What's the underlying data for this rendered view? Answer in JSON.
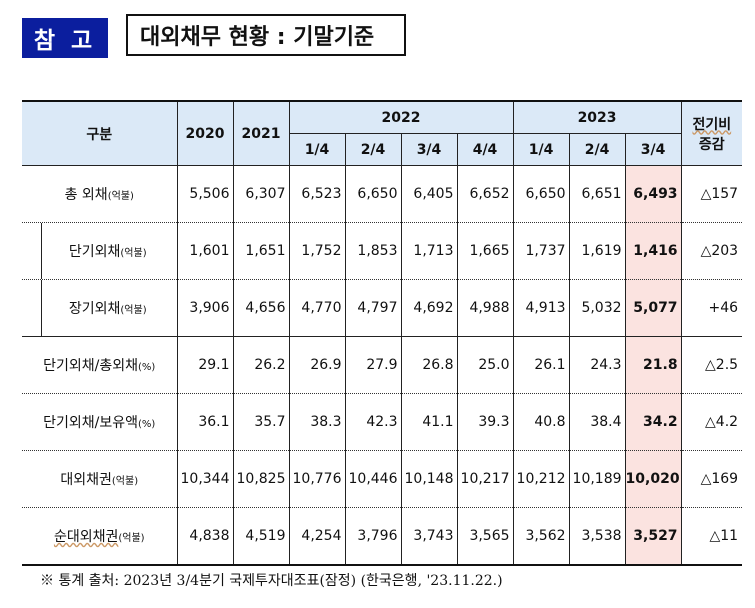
{
  "header": {
    "badge": "참 고",
    "title": "대외채무 현황 : 기말기준"
  },
  "table": {
    "col_label": "구분",
    "years": [
      "2020",
      "2021"
    ],
    "group_2022": "2022",
    "group_2023": "2023",
    "quarters_2022": [
      "1/4",
      "2/4",
      "3/4",
      "4/4"
    ],
    "quarters_2023": [
      "1/4",
      "2/4",
      "3/4"
    ],
    "change_header_line1": "전기비",
    "change_header_line2": "증감",
    "rows": [
      {
        "label": "총 외채",
        "unit": "(억불)",
        "values": [
          "5,506",
          "6,307",
          "6,523",
          "6,650",
          "6,405",
          "6,652",
          "6,650",
          "6,651",
          "6,493"
        ],
        "change": "△157"
      },
      {
        "label": "단기외채",
        "unit": "(억불)",
        "values": [
          "1,601",
          "1,651",
          "1,752",
          "1,853",
          "1,713",
          "1,665",
          "1,737",
          "1,619",
          "1,416"
        ],
        "change": "△203"
      },
      {
        "label": "장기외채",
        "unit": "(억불)",
        "values": [
          "3,906",
          "4,656",
          "4,770",
          "4,797",
          "4,692",
          "4,988",
          "4,913",
          "5,032",
          "5,077"
        ],
        "change": "+46"
      },
      {
        "label": "단기외채/총외채",
        "unit": "(%)",
        "values": [
          "29.1",
          "26.2",
          "26.9",
          "27.9",
          "26.8",
          "25.0",
          "26.1",
          "24.3",
          "21.8"
        ],
        "change": "△2.5"
      },
      {
        "label": "단기외채/보유액",
        "unit": "(%)",
        "values": [
          "36.1",
          "35.7",
          "38.3",
          "42.3",
          "41.1",
          "39.3",
          "40.8",
          "38.4",
          "34.2"
        ],
        "change": "△4.2"
      },
      {
        "label": "대외채권",
        "unit": "(억불)",
        "values": [
          "10,344",
          "10,825",
          "10,776",
          "10,446",
          "10,148",
          "10,217",
          "10,212",
          "10,189",
          "10,020"
        ],
        "change": "△169"
      },
      {
        "label": "순대외채권",
        "unit": "(억불)",
        "values": [
          "4,838",
          "4,519",
          "4,254",
          "3,796",
          "3,743",
          "3,565",
          "3,562",
          "3,538",
          "3,527"
        ],
        "change": "△11"
      }
    ]
  },
  "footnote": "※ 통계 출처: 2023년 3/4분기 국제투자대조표(잠정) (한국은행, '23.11.22.)"
}
